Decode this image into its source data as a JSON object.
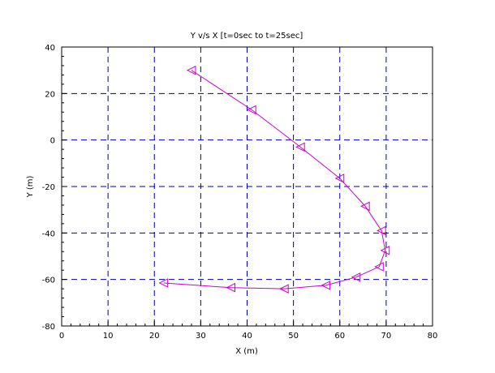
{
  "chart_data": {
    "type": "line",
    "title": "Y v/s X [t=0sec to t=25sec]",
    "xlabel": "X (m)",
    "ylabel": "Y (m)",
    "xlim": [
      0,
      80
    ],
    "ylim": [
      -80,
      40
    ],
    "xticks": [
      0,
      10,
      20,
      30,
      40,
      50,
      60,
      70,
      80
    ],
    "yticks": [
      -80,
      -60,
      -40,
      -20,
      0,
      20,
      40
    ],
    "grid": true,
    "legend": "none",
    "series": [
      {
        "color": "#cc00cc",
        "marker": "triangle-left",
        "x": [
          28,
          41,
          51.5,
          60,
          65.5,
          69,
          69.8,
          68.5,
          63.5,
          57,
          48,
          36.5,
          22
        ],
        "y": [
          30,
          13,
          -3,
          -16.5,
          -28.5,
          -39,
          -47.5,
          -54.5,
          -59,
          -62.5,
          -64,
          -63.5,
          -61.5
        ]
      }
    ],
    "colors": {
      "grid": "#000099",
      "axes": "#000000",
      "series": "#cc00cc"
    }
  }
}
